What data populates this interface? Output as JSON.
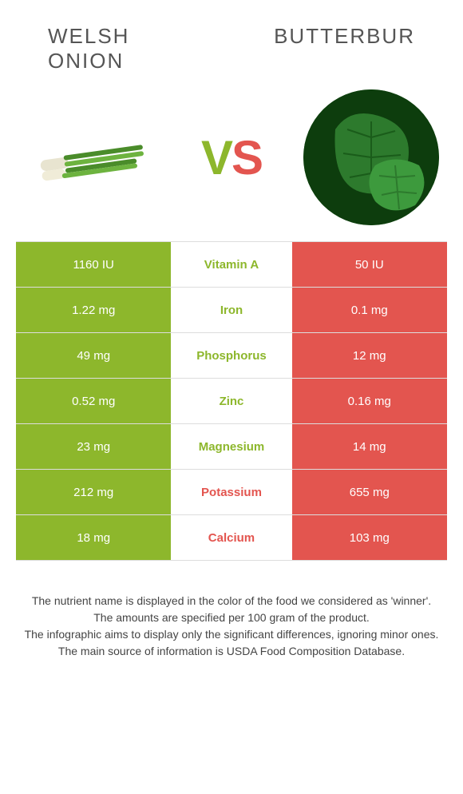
{
  "colors": {
    "green": "#8db72c",
    "red": "#e3554f",
    "white": "#ffffff",
    "border": "#dddddd",
    "title": "#555555",
    "footer": "#444444"
  },
  "left_food": {
    "name": "Welsh onion"
  },
  "right_food": {
    "name": "Butterbur"
  },
  "vs": {
    "v": "V",
    "s": "S"
  },
  "rows": [
    {
      "nutrient": "Vitamin A",
      "left": "1160 IU",
      "right": "50 IU",
      "winner": "left"
    },
    {
      "nutrient": "Iron",
      "left": "1.22 mg",
      "right": "0.1 mg",
      "winner": "left"
    },
    {
      "nutrient": "Phosphorus",
      "left": "49 mg",
      "right": "12 mg",
      "winner": "left"
    },
    {
      "nutrient": "Zinc",
      "left": "0.52 mg",
      "right": "0.16 mg",
      "winner": "left"
    },
    {
      "nutrient": "Magnesium",
      "left": "23 mg",
      "right": "14 mg",
      "winner": "left"
    },
    {
      "nutrient": "Potassium",
      "left": "212 mg",
      "right": "655 mg",
      "winner": "right"
    },
    {
      "nutrient": "Calcium",
      "left": "18 mg",
      "right": "103 mg",
      "winner": "right"
    }
  ],
  "footer_lines": [
    "The nutrient name is displayed in the color of the food we considered as 'winner'.",
    "The amounts are specified per 100 gram of the product.",
    "The infographic aims to display only the significant differences, ignoring minor ones.",
    "The main source of information is USDA Food Composition Database."
  ]
}
